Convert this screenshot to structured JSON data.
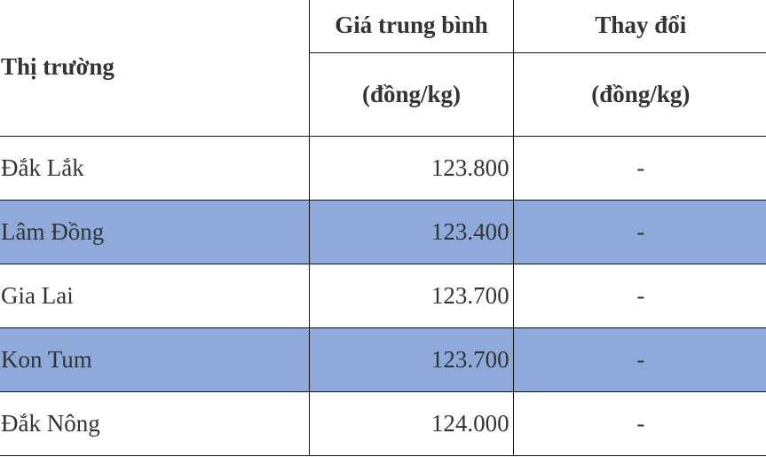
{
  "table": {
    "headers": {
      "market": "Thị trường",
      "avg_price": "Giá trung bình",
      "avg_price_unit": "(đồng/kg)",
      "change": "Thay đổi",
      "change_unit": "(đồng/kg)"
    },
    "rows": [
      {
        "market": "Đắk Lắk",
        "price": "123.800",
        "change": "-"
      },
      {
        "market": "Lâm Đồng",
        "price": "123.400",
        "change": "-"
      },
      {
        "market": "Gia Lai",
        "price": "123.700",
        "change": "-"
      },
      {
        "market": "Kon Tum",
        "price": "123.700",
        "change": "-"
      },
      {
        "market": "Đắk Nông",
        "price": "124.000",
        "change": "-"
      }
    ],
    "alt_row_color": "#8eaadb"
  }
}
